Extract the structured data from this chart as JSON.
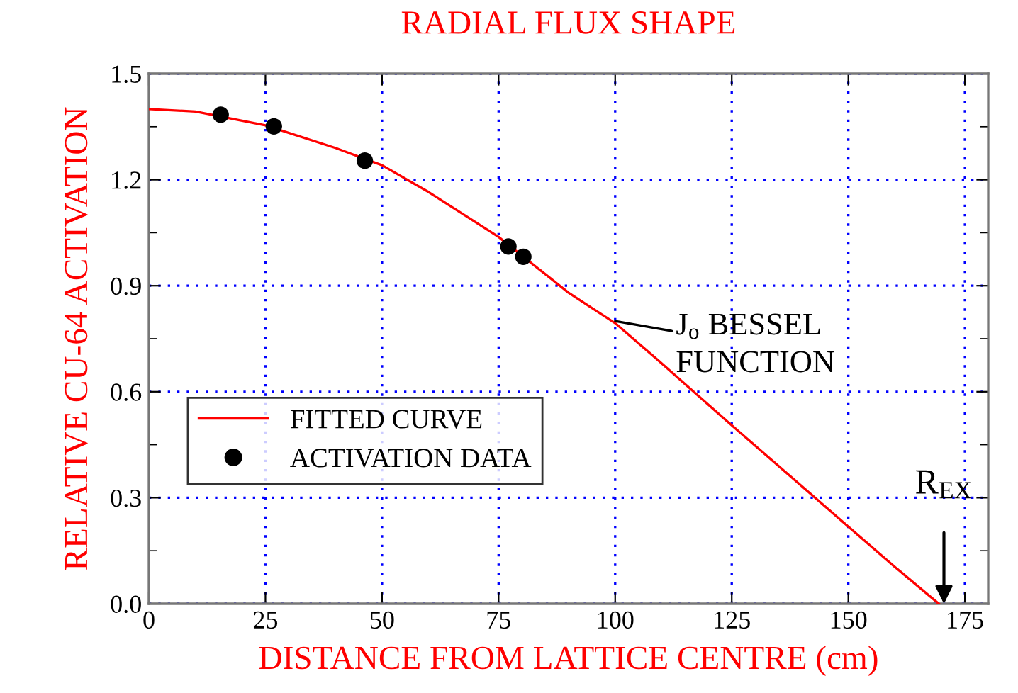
{
  "chart_data": {
    "type": "line",
    "title": "RADIAL FLUX SHAPE",
    "xlabel": "DISTANCE FROM LATTICE CENTRE (cm)",
    "ylabel": "RELATIVE CU-64 ACTIVATION",
    "series": [
      {
        "name": "FITTED CURVE",
        "color": "#ff0000",
        "marker": "none",
        "x": [
          0,
          10,
          25,
          40,
          50,
          60,
          75,
          90,
          100,
          110,
          120,
          125,
          140,
          150,
          160,
          169.4
        ],
        "values": [
          1.4,
          1.393,
          1.354,
          1.29,
          1.241,
          1.165,
          1.038,
          0.88,
          0.794,
          0.68,
          0.563,
          0.505,
          0.333,
          0.218,
          0.104,
          0.0
        ]
      },
      {
        "name": "ACTIVATION DATA",
        "type": "scatter",
        "color": "#000000",
        "marker": "circle",
        "x": [
          15.4,
          26.8,
          46.3,
          77.1,
          80.3
        ],
        "values": [
          1.384,
          1.351,
          1.254,
          1.011,
          0.982
        ]
      }
    ],
    "annotations": [
      {
        "text": "J$_{o}$ BESSEL\nFUNCTION",
        "x": 100,
        "y": 0.8
      },
      {
        "text": "R$_{EX}$",
        "x": 170.5,
        "y": 0.0
      }
    ],
    "xlim": [
      0,
      180
    ],
    "xticks": [
      0,
      25,
      50,
      75,
      100,
      125,
      150,
      175
    ],
    "ylim": [
      0,
      1.5
    ],
    "yticks": [
      {
        "value": 0,
        "label": "0.0"
      },
      {
        "value": 0.3,
        "label": "0.3"
      },
      {
        "value": 0.6,
        "label": "0.6"
      },
      {
        "value": 0.9,
        "label": "0.9"
      },
      {
        "value": 1.2,
        "label": "1.2"
      },
      {
        "value": 1.5,
        "label": "1.5"
      }
    ],
    "grid": true,
    "legend": "bottom left"
  }
}
